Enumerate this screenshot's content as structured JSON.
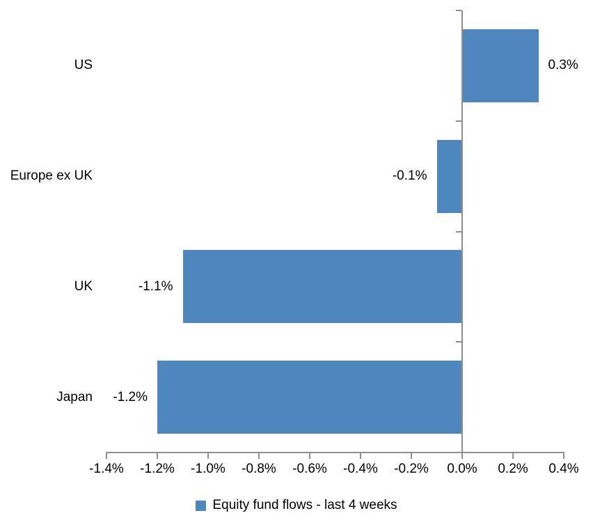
{
  "chart_data": {
    "type": "bar",
    "orientation": "horizontal",
    "title": "",
    "xlabel": "",
    "ylabel": "",
    "categories": [
      "US",
      "Europe ex UK",
      "UK",
      "Japan"
    ],
    "values": [
      0.3,
      -0.1,
      -1.1,
      -1.2
    ],
    "value_labels": [
      "0.3%",
      "-0.1%",
      "-1.1%",
      "-1.2%"
    ],
    "xlim": [
      -1.4,
      0.4
    ],
    "x_tick_step": 0.2,
    "x_tick_labels": [
      "-1.4%",
      "-1.2%",
      "-1.0%",
      "-0.8%",
      "-0.6%",
      "-0.4%",
      "-0.2%",
      "0.0%",
      "0.2%",
      "0.4%"
    ],
    "grid": false,
    "legend_position": "bottom",
    "legend": [
      {
        "label": "Equity fund flows - last 4 weeks",
        "color": "#4E87BE"
      }
    ],
    "bar_color": "#4E87BE",
    "axis_color": "#8f8f8f",
    "text_color": "#000000"
  }
}
